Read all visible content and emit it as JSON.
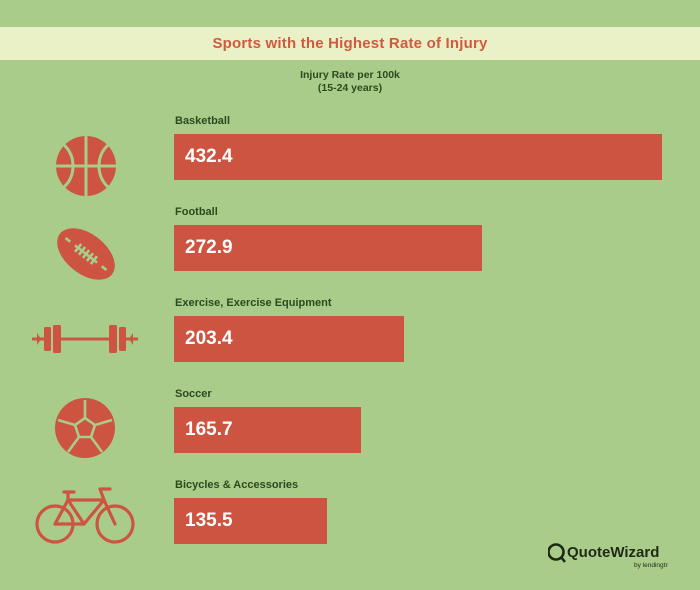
{
  "title": "Sports with the Highest Rate of Injury",
  "subtitle_line1": "Injury Rate per 100k",
  "subtitle_line2": "(15-24 years)",
  "colors": {
    "background": "#a9cc8b",
    "title_band": "#eaf1c7",
    "accent": "#cc5440",
    "label": "#2c4a1e"
  },
  "chart_data": {
    "type": "bar",
    "orientation": "horizontal",
    "categories": [
      "Basketball",
      "Football",
      "Exercise, Exercise Equipment",
      "Soccer",
      "Bicycles & Accessories"
    ],
    "values": [
      432.4,
      272.9,
      203.4,
      165.7,
      135.5
    ],
    "value_labels": [
      "432.4",
      "272.9",
      "203.4",
      "165.7",
      "135.5"
    ],
    "icons": [
      "basketball-icon",
      "football-icon",
      "dumbbell-icon",
      "soccer-ball-icon",
      "bicycle-icon"
    ],
    "title": "Sports with the Highest Rate of Injury",
    "xlabel": "Injury Rate per 100k (15-24 years)",
    "ylabel": "",
    "xlim": [
      0,
      432.4
    ],
    "grid": false,
    "legend": "none"
  },
  "logo": {
    "name": "QuoteWizard",
    "byline": "by lendingtree"
  }
}
